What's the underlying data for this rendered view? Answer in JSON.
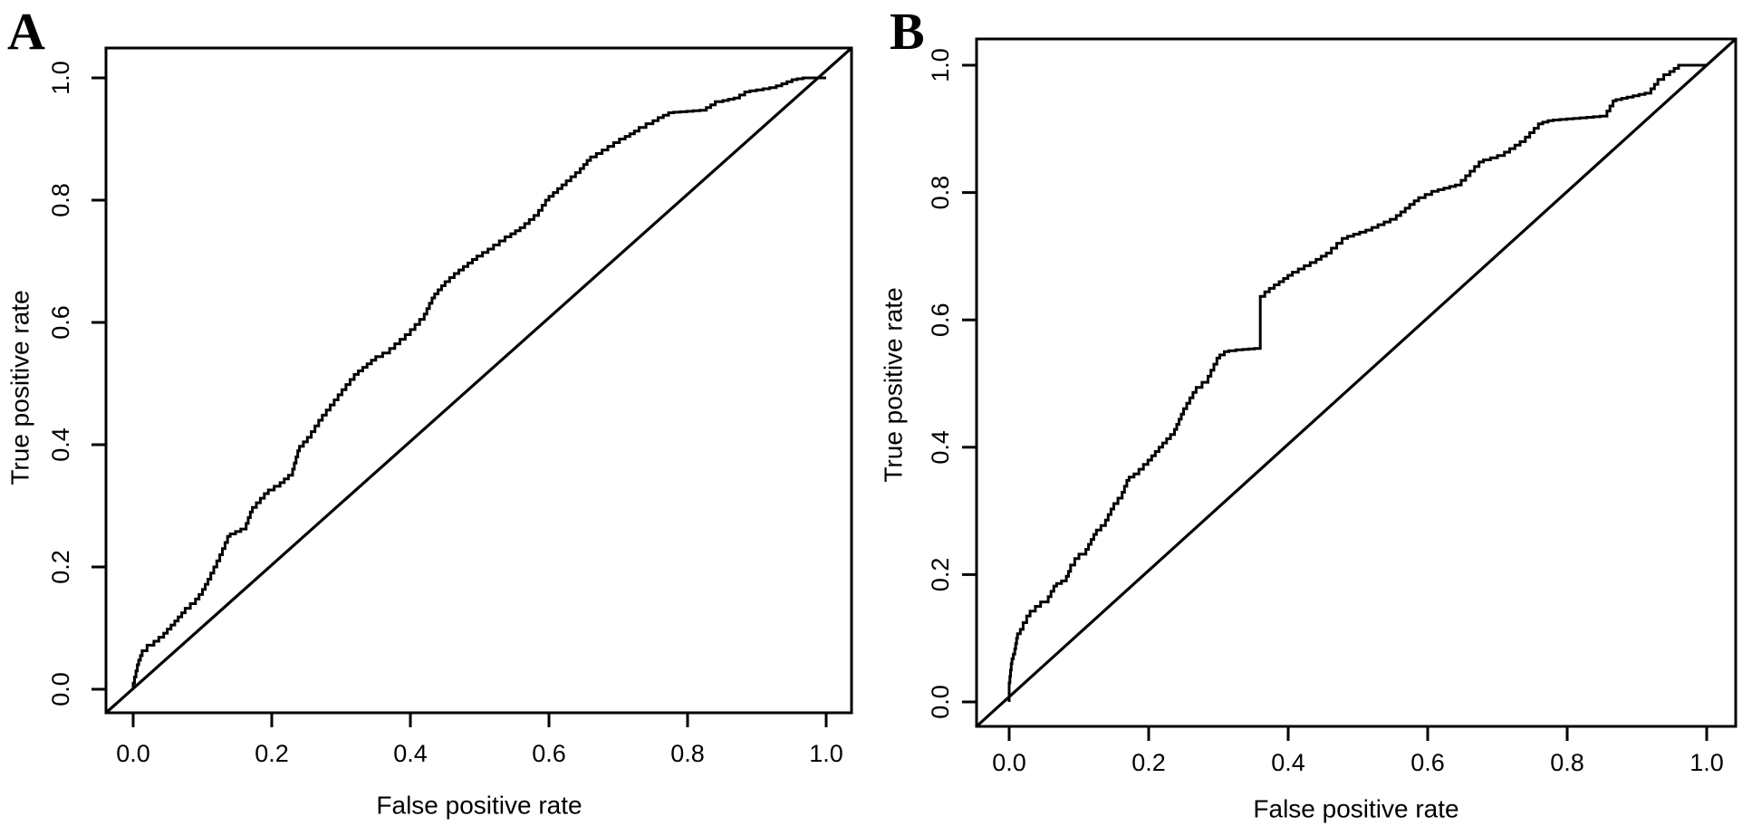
{
  "figure": {
    "background": "#ffffff",
    "line_color": "#000000"
  },
  "panels": [
    {
      "label": "A",
      "xlabel": "False positive rate",
      "ylabel": "True positive rate",
      "xticks": [
        "0.0",
        "0.2",
        "0.4",
        "0.6",
        "0.8",
        "1.0"
      ],
      "yticks": [
        "0.0",
        "0.2",
        "0.4",
        "0.6",
        "0.8",
        "1.0"
      ]
    },
    {
      "label": "B",
      "xlabel": "False positive rate",
      "ylabel": "True positive rate",
      "xticks": [
        "0.0",
        "0.2",
        "0.4",
        "0.6",
        "0.8",
        "1.0"
      ],
      "yticks": [
        "0.0",
        "0.2",
        "0.4",
        "0.6",
        "0.8",
        "1.0"
      ]
    }
  ],
  "chart_data": [
    {
      "type": "line",
      "panel": "A",
      "title": "",
      "xlabel": "False positive rate",
      "ylabel": "True positive rate",
      "xlim": [
        0,
        1
      ],
      "ylim": [
        0,
        1
      ],
      "grid": false,
      "legend": "none",
      "series": [
        {
          "name": "roc-curve",
          "style": "step",
          "points": [
            [
              0,
              0
            ],
            [
              0.004,
              0.02
            ],
            [
              0.008,
              0.04
            ],
            [
              0.013,
              0.055
            ],
            [
              0.02,
              0.063
            ],
            [
              0.03,
              0.072
            ],
            [
              0.044,
              0.085
            ],
            [
              0.06,
              0.105
            ],
            [
              0.075,
              0.125
            ],
            [
              0.09,
              0.14
            ],
            [
              0.1,
              0.155
            ],
            [
              0.112,
              0.18
            ],
            [
              0.125,
              0.21
            ],
            [
              0.14,
              0.25
            ],
            [
              0.163,
              0.262
            ],
            [
              0.172,
              0.29
            ],
            [
              0.195,
              0.32
            ],
            [
              0.212,
              0.332
            ],
            [
              0.23,
              0.35
            ],
            [
              0.24,
              0.39
            ],
            [
              0.257,
              0.412
            ],
            [
              0.273,
              0.44
            ],
            [
              0.29,
              0.465
            ],
            [
              0.307,
              0.49
            ],
            [
              0.325,
              0.515
            ],
            [
              0.35,
              0.538
            ],
            [
              0.37,
              0.55
            ],
            [
              0.4,
              0.58
            ],
            [
              0.42,
              0.605
            ],
            [
              0.435,
              0.64
            ],
            [
              0.45,
              0.66
            ],
            [
              0.47,
              0.68
            ],
            [
              0.496,
              0.703
            ],
            [
              0.52,
              0.72
            ],
            [
              0.545,
              0.74
            ],
            [
              0.565,
              0.755
            ],
            [
              0.585,
              0.775
            ],
            [
              0.6,
              0.8
            ],
            [
              0.625,
              0.825
            ],
            [
              0.645,
              0.845
            ],
            [
              0.66,
              0.865
            ],
            [
              0.685,
              0.882
            ],
            [
              0.71,
              0.9
            ],
            [
              0.73,
              0.913
            ],
            [
              0.75,
              0.925
            ],
            [
              0.765,
              0.935
            ],
            [
              0.78,
              0.943
            ],
            [
              0.827,
              0.947
            ],
            [
              0.84,
              0.956
            ],
            [
              0.851,
              0.961
            ],
            [
              0.875,
              0.967
            ],
            [
              0.89,
              0.977
            ],
            [
              0.928,
              0.984
            ],
            [
              0.936,
              0.987
            ],
            [
              0.958,
              0.997
            ],
            [
              0.975,
              1
            ],
            [
              1,
              1
            ]
          ]
        },
        {
          "name": "chance-diagonal",
          "style": "line",
          "points": [
            [
              0,
              0
            ],
            [
              1,
              1
            ]
          ]
        }
      ]
    },
    {
      "type": "line",
      "panel": "B",
      "title": "",
      "xlabel": "False positive rate",
      "ylabel": "True positive rate",
      "xlim": [
        0,
        1
      ],
      "ylim": [
        0,
        1
      ],
      "grid": false,
      "legend": "none",
      "series": [
        {
          "name": "roc-curve",
          "style": "step",
          "points": [
            [
              0,
              0
            ],
            [
              0,
              0.02
            ],
            [
              0.002,
              0.04
            ],
            [
              0.004,
              0.06
            ],
            [
              0.008,
              0.075
            ],
            [
              0.012,
              0.1
            ],
            [
              0.02,
              0.114
            ],
            [
              0.03,
              0.135
            ],
            [
              0.045,
              0.15
            ],
            [
              0.056,
              0.157
            ],
            [
              0.068,
              0.182
            ],
            [
              0.082,
              0.19
            ],
            [
              0.088,
              0.205
            ],
            [
              0.1,
              0.225
            ],
            [
              0.11,
              0.232
            ],
            [
              0.125,
              0.263
            ],
            [
              0.138,
              0.277
            ],
            [
              0.15,
              0.303
            ],
            [
              0.162,
              0.32
            ],
            [
              0.172,
              0.348
            ],
            [
              0.186,
              0.358
            ],
            [
              0.199,
              0.373
            ],
            [
              0.22,
              0.4
            ],
            [
              0.237,
              0.42
            ],
            [
              0.25,
              0.452
            ],
            [
              0.268,
              0.486
            ],
            [
              0.285,
              0.502
            ],
            [
              0.302,
              0.54
            ],
            [
              0.315,
              0.55
            ],
            [
              0.335,
              0.553
            ],
            [
              0.36,
              0.555
            ],
            [
              0.36,
              0.63
            ],
            [
              0.373,
              0.644
            ],
            [
              0.387,
              0.655
            ],
            [
              0.406,
              0.67
            ],
            [
              0.44,
              0.69
            ],
            [
              0.462,
              0.705
            ],
            [
              0.485,
              0.728
            ],
            [
              0.52,
              0.741
            ],
            [
              0.555,
              0.758
            ],
            [
              0.587,
              0.787
            ],
            [
              0.615,
              0.802
            ],
            [
              0.648,
              0.812
            ],
            [
              0.68,
              0.848
            ],
            [
              0.71,
              0.858
            ],
            [
              0.74,
              0.88
            ],
            [
              0.765,
              0.908
            ],
            [
              0.78,
              0.913
            ],
            [
              0.857,
              0.92
            ],
            [
              0.87,
              0.944
            ],
            [
              0.886,
              0.948
            ],
            [
              0.92,
              0.956
            ],
            [
              0.93,
              0.97
            ],
            [
              0.947,
              0.985
            ],
            [
              0.966,
              1
            ],
            [
              1,
              1
            ]
          ]
        },
        {
          "name": "chance-diagonal",
          "style": "line",
          "points": [
            [
              0,
              0
            ],
            [
              1,
              1
            ]
          ]
        }
      ]
    }
  ]
}
